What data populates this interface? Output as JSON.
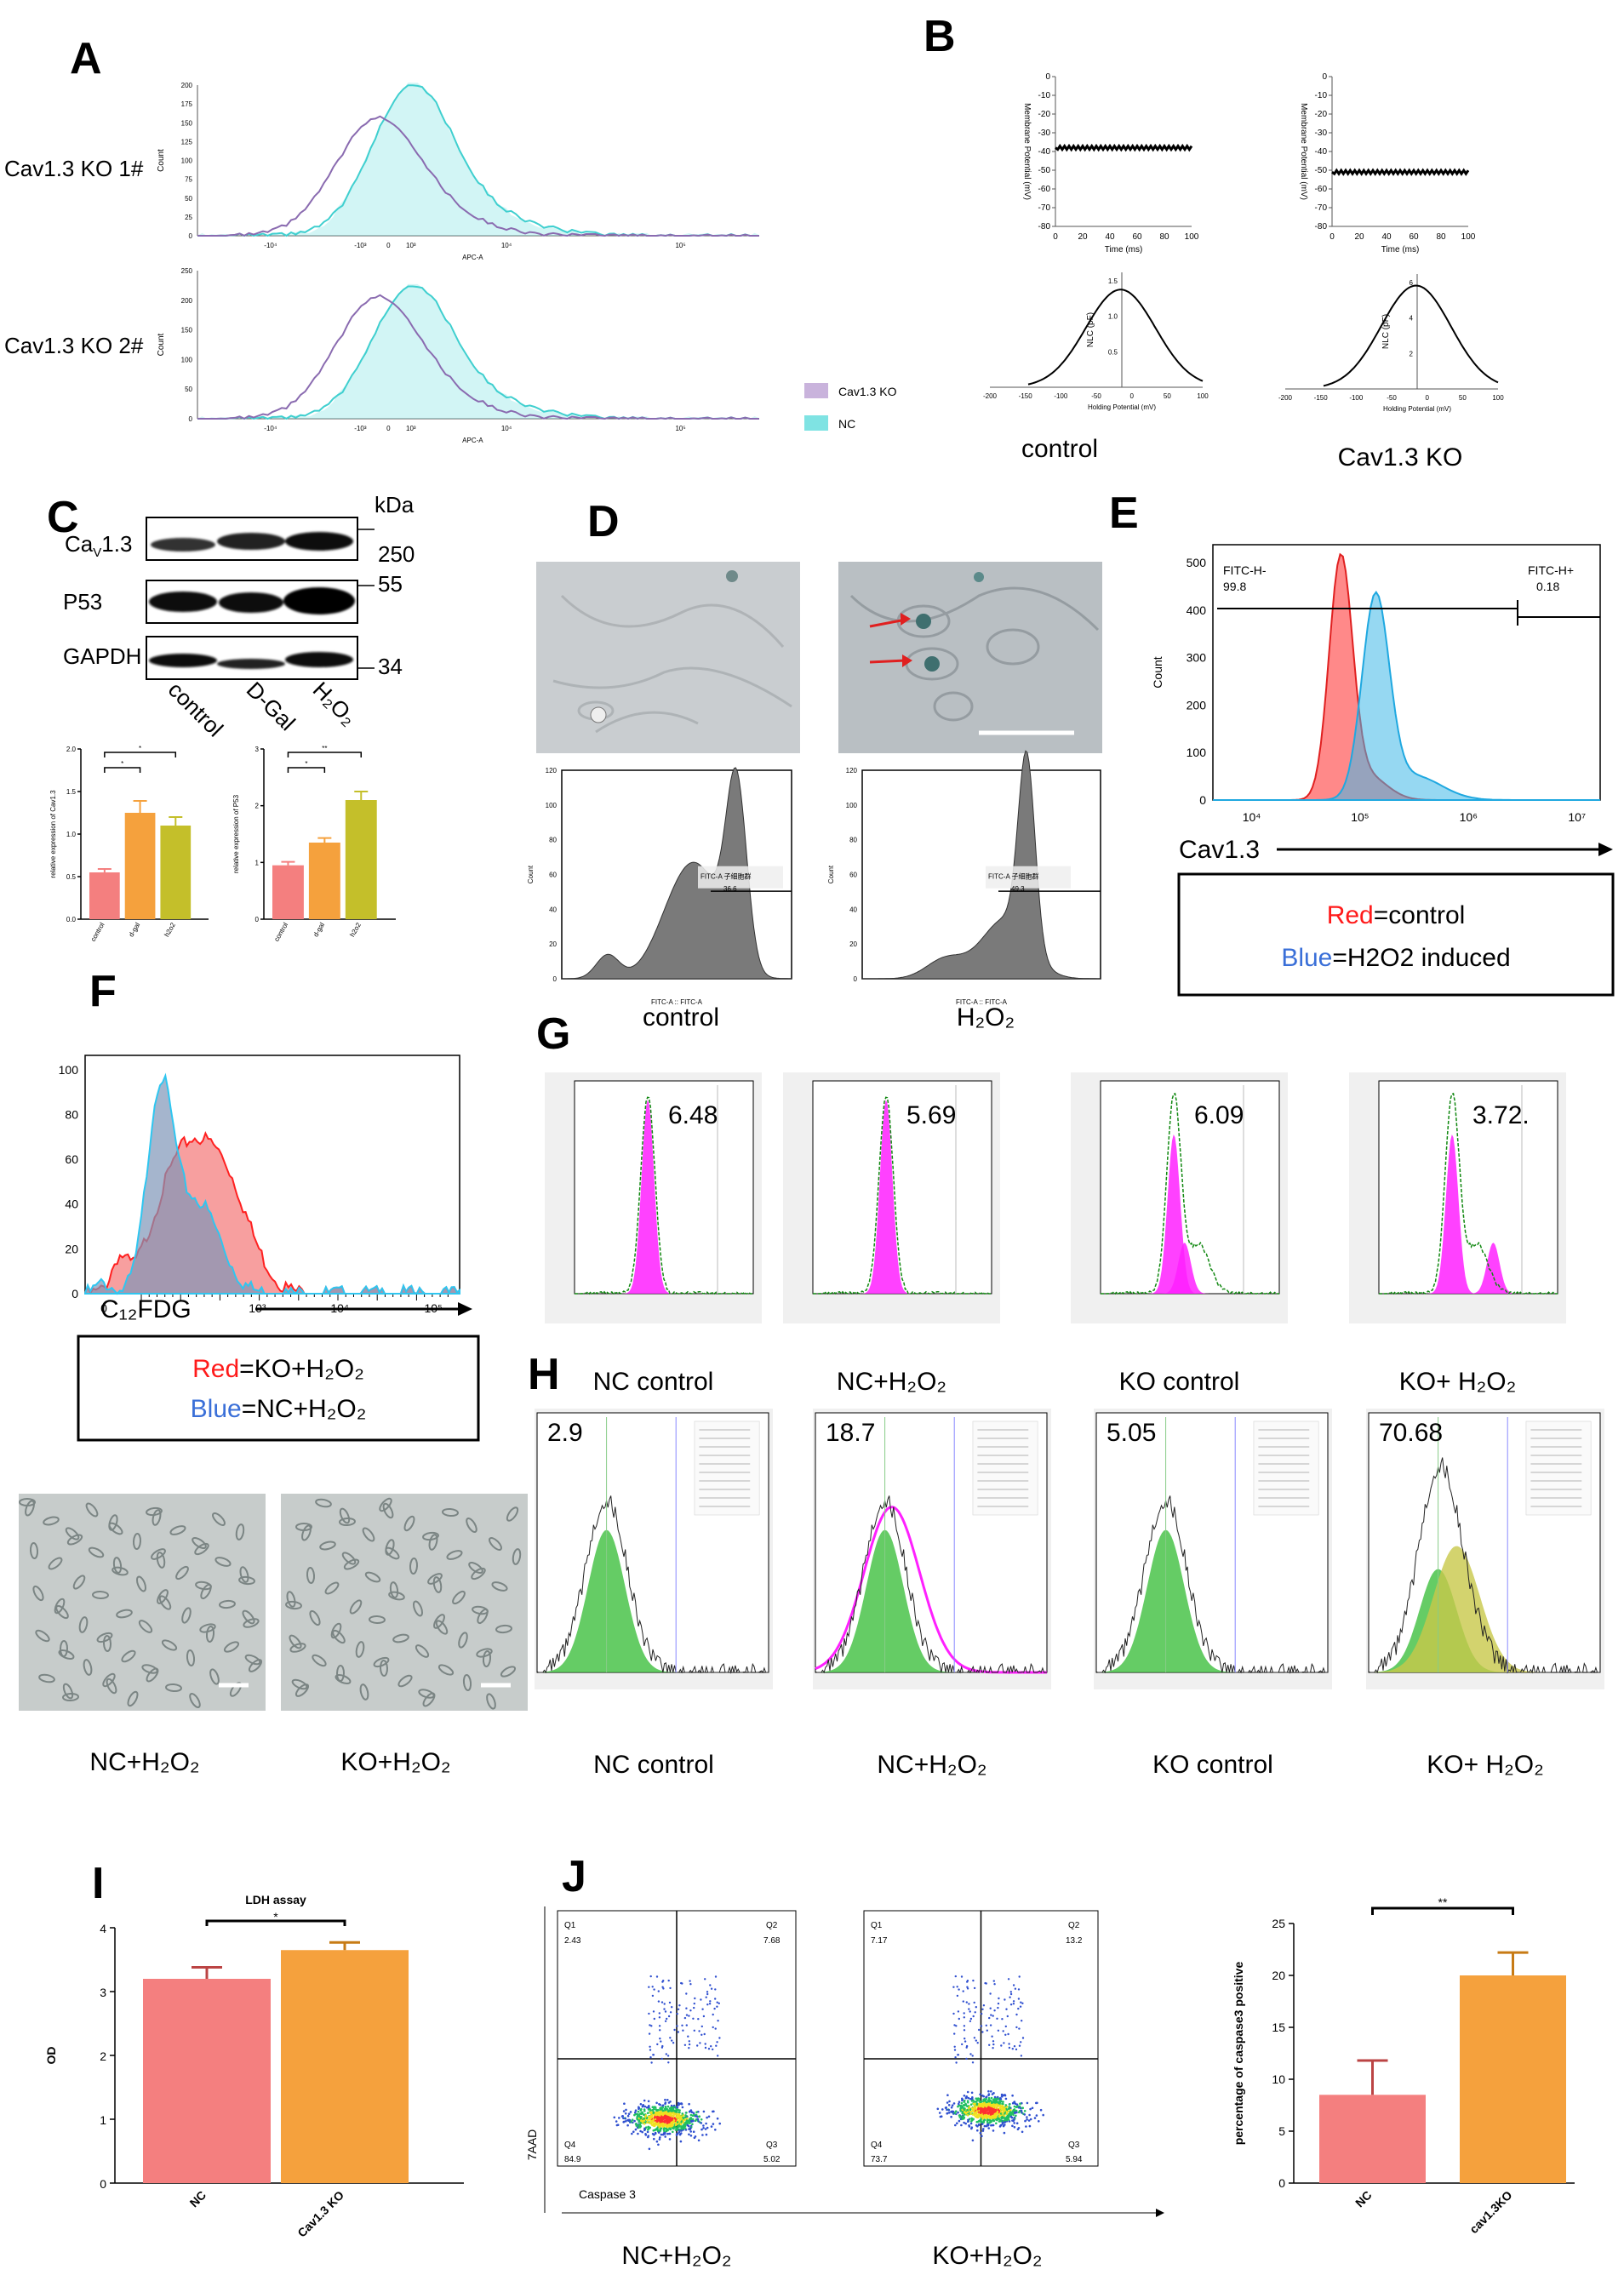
{
  "panels": {
    "A": "A",
    "B": "B",
    "C": "C",
    "D": "D",
    "E": "E",
    "F": "F",
    "G": "G",
    "H": "H",
    "I": "I",
    "J": "J"
  },
  "panel_a": {
    "row1_label": "Cav1.3 KO 1#",
    "row2_label": "Cav1.3 KO 2#",
    "xlabel": "APC-A",
    "ylabel": "Count",
    "row1_yticks": [
      "0",
      "25",
      "50",
      "75",
      "100",
      "125",
      "150",
      "175",
      "200"
    ],
    "row2_yticks": [
      "0",
      "50",
      "100",
      "150",
      "200",
      "250"
    ],
    "xticks": [
      "-10⁴",
      "-10³",
      "0",
      "10³",
      "10⁴",
      "10⁵"
    ],
    "legend": [
      "Cav1.3 KO",
      "NC"
    ],
    "colors": {
      "ko": "#8a6bb0",
      "nc": "#3fcfcf",
      "ko_fill": "#c9b3dc",
      "nc_fill": "#7fe3e3"
    }
  },
  "panel_b": {
    "ylabel_top": "Membrane Potential (mV)",
    "xlabel_top": "Time (ms)",
    "yticks_top": [
      "0",
      "-10",
      "-20",
      "-30",
      "-40",
      "-50",
      "-60",
      "-70",
      "-80"
    ],
    "xticks_top": [
      "0",
      "20",
      "40",
      "60",
      "80",
      "100"
    ],
    "control_potential": -38,
    "ko_potential": -51,
    "ylabel_bottom": "NLC (pF)",
    "xlabel_bottom": "Holding Potential (mV)",
    "xticks_bottom": [
      "-200",
      "-150",
      "-100",
      "-50",
      "0",
      "50",
      "100"
    ],
    "yticks_bottom_control": [
      "1.5",
      "1.0",
      "0.5"
    ],
    "yticks_bottom_ko": [
      "6",
      "4",
      "2"
    ],
    "label_control": "control",
    "label_ko": "Cav1.3 KO"
  },
  "panel_c": {
    "kda": "kDa",
    "rows": [
      "Ca",
      "P53",
      "GAPDH"
    ],
    "cav_sub": "V",
    "cav_rest": "1.3",
    "markers": [
      "250",
      "55",
      "34"
    ],
    "lanes": [
      "control",
      "D-Gal",
      "H₂O₂"
    ],
    "chart1": {
      "ylabel": "relative expression of Cav1.3",
      "categories": [
        "control",
        "d-gal",
        "h2o2"
      ],
      "values": [
        0.55,
        1.25,
        1.1
      ],
      "errors": [
        0.04,
        0.14,
        0.1
      ],
      "yticks": [
        "0.0",
        "0.5",
        "1.0",
        "1.5",
        "2.0"
      ],
      "sig": [
        "*",
        "*"
      ]
    },
    "chart2": {
      "ylabel": "relative expression of P53",
      "categories": [
        "control",
        "d-gal",
        "h2o2"
      ],
      "values": [
        0.95,
        1.35,
        2.1
      ],
      "errors": [
        0.06,
        0.08,
        0.15
      ],
      "yticks": [
        "0",
        "1",
        "2",
        "3"
      ],
      "sig": [
        "*",
        "**"
      ]
    },
    "colors": {
      "control": "#f47f7f",
      "dgal": "#f5a13d",
      "h2o2": "#c4bf2a"
    }
  },
  "panel_d": {
    "hist_ylabel": "Count",
    "hist_xlabel": "FITC-A :: FITC-A",
    "gate_control": "FITC-A 子细胞群",
    "gate_control_val": "36.6",
    "gate_h2o2": "FITC-A 子细胞群",
    "gate_h2o2_val": "49.3",
    "yticks": [
      "0",
      "20",
      "40",
      "60",
      "80",
      "100",
      "120"
    ],
    "label_control": "control",
    "label_h2o2": "H₂O₂"
  },
  "panel_e": {
    "gate_neg": "FITC-H-",
    "gate_neg_val": "99.8",
    "gate_pos": "FITC-H+",
    "gate_pos_val": "0.18",
    "ylabel": "Count",
    "yticks": [
      "0",
      "100",
      "200",
      "300",
      "400",
      "500"
    ],
    "xticks": [
      "10⁴",
      "10⁵",
      "10⁶",
      "10⁷"
    ],
    "xlabel": "Cav1.3",
    "legend_red": "Red",
    "legend_red_rest": "=control",
    "legend_blue": "Blue",
    "legend_blue_rest": "=H2O2 induced",
    "colors": {
      "red": "#ff4a4a",
      "blue": "#3fb8e8"
    }
  },
  "panel_f": {
    "yticks": [
      "0",
      "20",
      "40",
      "60",
      "80",
      "100"
    ],
    "xticks": [
      "0",
      "10³",
      "10⁴",
      "10⁵"
    ],
    "xlabel": "C₁₂FDG",
    "legend_red": "Red",
    "legend_red_rest": "=KO+H₂O₂",
    "legend_blue": "Blue",
    "legend_blue_rest": "=NC+H₂O₂",
    "image_labels": [
      "NC+H₂O₂",
      "KO+H₂O₂"
    ]
  },
  "panel_g": {
    "values": [
      "6.48",
      "5.69",
      "6.09",
      "3.72."
    ],
    "labels": [
      "NC control",
      "NC+H₂O₂",
      "KO control",
      "KO+ H₂O₂"
    ]
  },
  "panel_h": {
    "values": [
      "2.9",
      "18.7",
      "5.05",
      "70.68"
    ],
    "labels": [
      "NC control",
      "NC+H₂O₂",
      "KO control",
      "KO+ H₂O₂"
    ]
  },
  "panel_i": {
    "title": "LDH assay",
    "ylabel": "OD",
    "yticks": [
      "0",
      "1",
      "2",
      "3",
      "4"
    ],
    "sig": "*",
    "colors": {
      "nc": "#f47f7f",
      "ko": "#f5a13d"
    }
  },
  "panel_j": {
    "ylabel": "7AAD",
    "xlabel": "Caspase 3",
    "flow1": {
      "q1": "Q1",
      "q1v": "2.43",
      "q2": "Q2",
      "q2v": "7.68",
      "q3": "Q3",
      "q3v": "5.02",
      "q4": "Q4",
      "q4v": "84.9"
    },
    "flow2": {
      "q1": "Q1",
      "q1v": "7.17",
      "q2": "Q2",
      "q2v": "13.2",
      "q3": "Q3",
      "q3v": "5.94",
      "q4": "Q4",
      "q4v": "73.7"
    },
    "label1": "NC+H₂O₂",
    "label2": "KO+H₂O₂",
    "bar_ylabel": "percentage of caspase3 positive",
    "yticks": [
      "0",
      "5",
      "10",
      "15",
      "20",
      "25"
    ],
    "sig": "**",
    "colors": {
      "nc": "#f47f7f",
      "ko": "#f5a13d"
    }
  },
  "chart_data": [
    {
      "type": "bar",
      "title": "",
      "ylabel": "relative expression of Cav1.3",
      "categories": [
        "control",
        "d-gal",
        "h2o2"
      ],
      "values": [
        0.55,
        1.25,
        1.1
      ],
      "ylim": [
        0,
        2
      ]
    },
    {
      "type": "bar",
      "title": "",
      "ylabel": "relative expression of P53",
      "categories": [
        "control",
        "d-gal",
        "h2o2"
      ],
      "values": [
        0.95,
        1.35,
        2.1
      ],
      "ylim": [
        0,
        3
      ]
    },
    {
      "type": "bar",
      "title": "LDH assay",
      "ylabel": "OD",
      "categories": [
        "NC",
        "Cav1.3 KO"
      ],
      "values": [
        3.2,
        3.65
      ],
      "errors": [
        0.18,
        0.12
      ],
      "ylim": [
        0,
        4
      ]
    },
    {
      "type": "bar",
      "title": "",
      "ylabel": "percentage of caspase3 positive",
      "categories": [
        "NC",
        "cav1.3KO"
      ],
      "values": [
        8.5,
        20
      ],
      "errors": [
        3.3,
        2.2
      ],
      "ylim": [
        0,
        25
      ]
    }
  ]
}
